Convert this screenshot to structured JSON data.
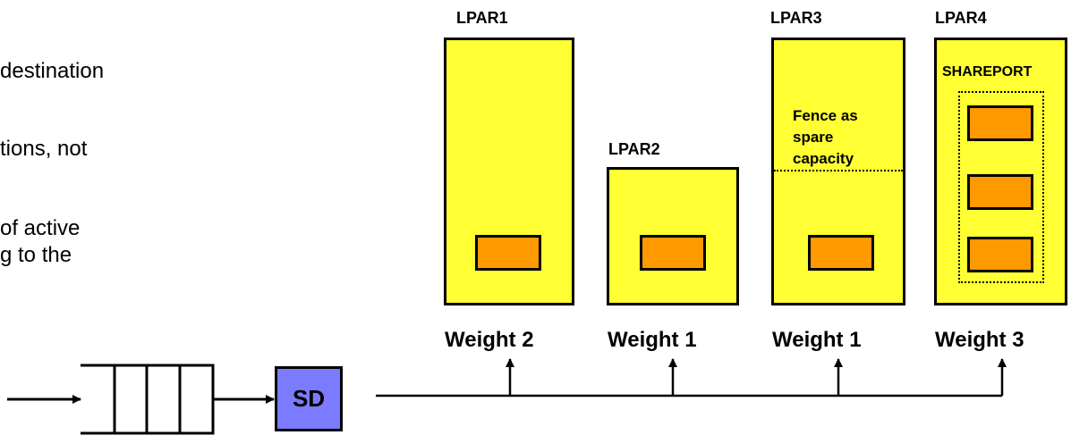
{
  "bullets": [
    "destination",
    "tions, not",
    "of active",
    "g to the"
  ],
  "lpars": [
    {
      "title": "LPAR1",
      "weight": "Weight 2"
    },
    {
      "title": "LPAR2",
      "weight": "Weight 1"
    },
    {
      "title": "LPAR3",
      "weight": "Weight 1",
      "fence_text": "Fence as spare capacity"
    },
    {
      "title": "LPAR4",
      "weight": "Weight 3",
      "group_label": "SHAREPORT"
    }
  ],
  "sd_label": "SD",
  "colors": {
    "lpar_fill": "#ffff33",
    "server_fill": "#ff9900",
    "sd_fill": "#7b7bff"
  }
}
